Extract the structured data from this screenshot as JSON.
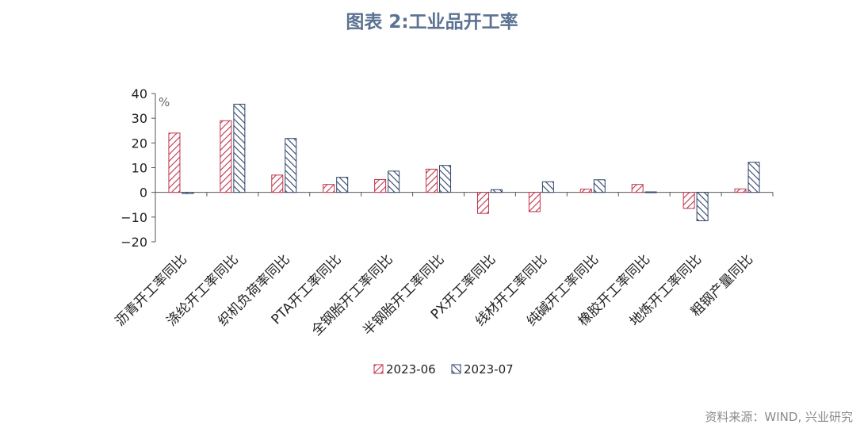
{
  "title": "图表 2:工业品开工率",
  "source": "资料来源：WIND, 兴业研究",
  "colors": {
    "s2023_06": "#c0334a",
    "s2023_07": "#2f4468"
  },
  "chart_data": {
    "type": "bar",
    "title": "图表 2:工业品开工率",
    "unit": "%",
    "ylim": [
      -20,
      40
    ],
    "yticks": [
      -20,
      -10,
      0,
      10,
      20,
      30,
      40
    ],
    "legend": "bottom",
    "categories": [
      "沥青开工率同比",
      "涤纶开工率同比",
      "织机负荷率同比",
      "PTA开工率同比",
      "全钢胎开工率同比",
      "半钢胎开工率同比",
      "PX开工率同比",
      "线材开工率同比",
      "纯碱开工率同比",
      "橡胶开工率同比",
      "地炼开工率同比",
      "粗钢产量同比"
    ],
    "series": [
      {
        "name": "2023-06",
        "values": [
          24,
          29,
          7,
          3.2,
          5.2,
          9.4,
          -8.5,
          -7.8,
          1.3,
          3.2,
          -6.5,
          1.4
        ]
      },
      {
        "name": "2023-07",
        "values": [
          -0.5,
          35.7,
          21.8,
          6.1,
          8.6,
          10.9,
          1.1,
          4.3,
          5.1,
          0.2,
          -11.5,
          12.2
        ]
      }
    ]
  }
}
